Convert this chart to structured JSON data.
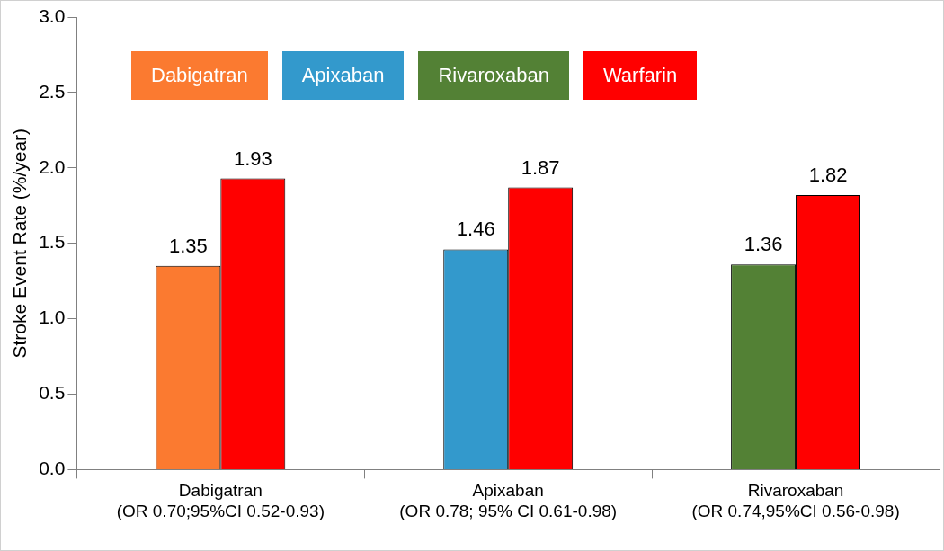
{
  "chart_data": {
    "type": "bar",
    "ylabel": "Stroke Event Rate (%/year)",
    "categories": [
      "Dabigatran\n(OR 0.70;95%CI 0.52-0.93)",
      "Apixaban\n(OR 0.78; 95% CI 0.61-0.98)",
      "Rivaroxaban\n(OR 0.74,95%CI 0.56-0.98)"
    ],
    "series": [
      {
        "name": "Dabigatran",
        "color": "#fb7a30",
        "values": [
          1.35,
          null,
          null
        ]
      },
      {
        "name": "Apixaban",
        "color": "#3399cc",
        "values": [
          null,
          1.46,
          null
        ]
      },
      {
        "name": "Rivaroxaban",
        "color": "#538135",
        "values": [
          null,
          null,
          1.36
        ]
      },
      {
        "name": "Warfarin",
        "color": "#ff0000",
        "values": [
          1.93,
          1.87,
          1.82
        ]
      }
    ],
    "ylim": [
      0,
      3
    ],
    "yticks": [
      {
        "value": 0,
        "label": "0.0"
      },
      0.5,
      {
        "value": 1,
        "label": "1.0"
      },
      1.5,
      {
        "value": 2,
        "label": "2.0"
      },
      2.5,
      {
        "value": 3,
        "label": "3.0"
      }
    ],
    "grid": false,
    "legend": "top left",
    "data_labels": true
  }
}
